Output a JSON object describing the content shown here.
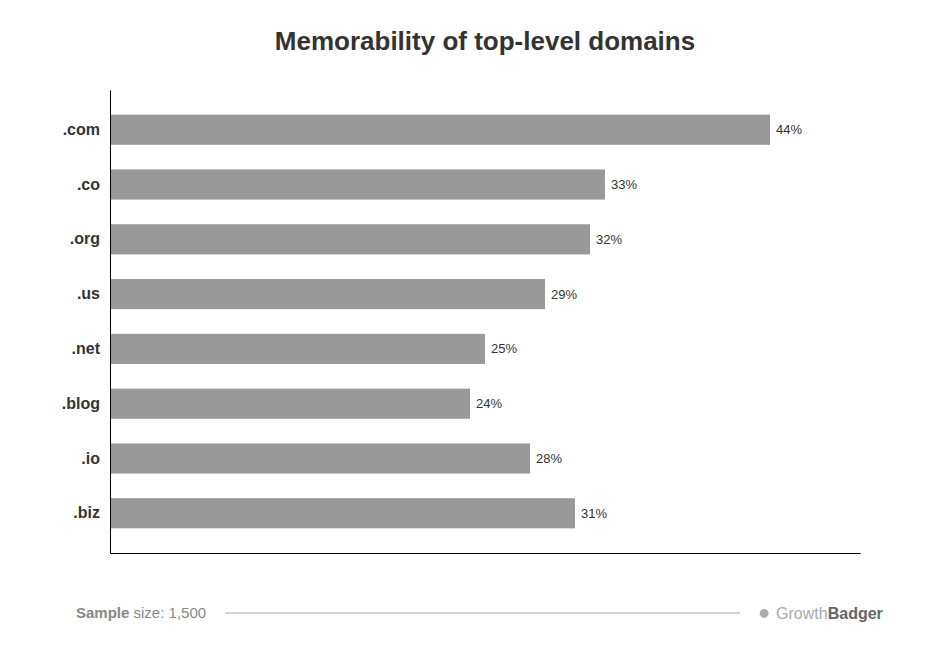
{
  "chart_data": {
    "type": "bar",
    "title": "Memorability of top-level domains",
    "orientation": "horizontal",
    "categories": [
      ".com",
      ".co",
      ".org",
      ".us",
      ".net",
      ".blog",
      ".io",
      ".biz"
    ],
    "values": [
      44,
      33,
      32,
      29,
      25,
      24,
      28,
      31
    ],
    "value_labels": [
      "44%",
      "33%",
      "32%",
      "29%",
      "25%",
      "24%",
      "28%",
      "31%"
    ],
    "data_labels": true,
    "color": "#999999",
    "xlim": [
      0,
      50
    ],
    "tick_labels": "y",
    "grid": false,
    "annotations": [
      "Sample",
      " size: 1,500",
      "●",
      "Growth",
      "Badger"
    ]
  }
}
